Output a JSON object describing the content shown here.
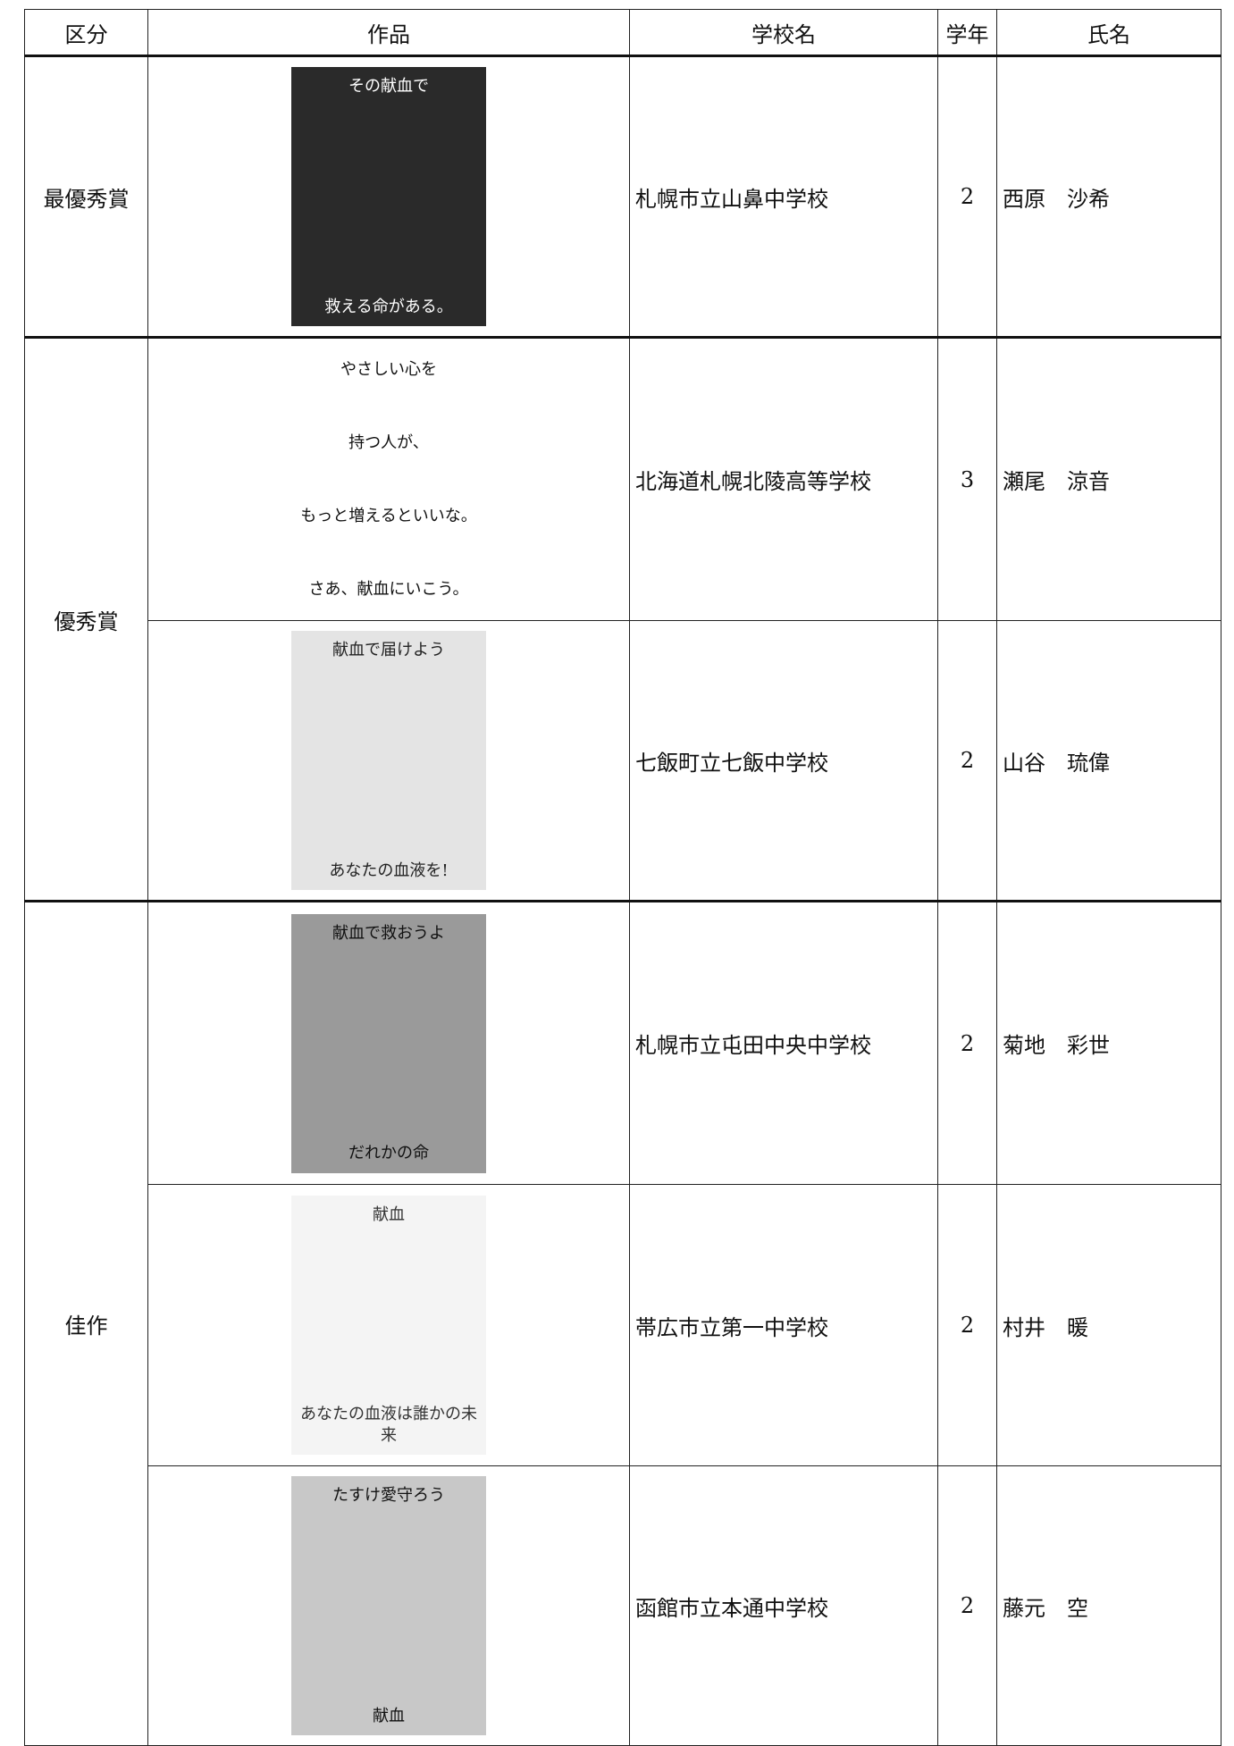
{
  "table": {
    "header": [
      "区分",
      "作品",
      "学校名",
      "学年",
      "氏名"
    ],
    "groups": [
      {
        "category": "最優秀賞",
        "entries": [
          {
            "artwork": [
              "その献血で",
              "救える命がある。"
            ],
            "school": "札幌市立山鼻中学校",
            "grade": 2,
            "name": "西原　沙希"
          }
        ]
      },
      {
        "category": "優秀賞",
        "entries": [
          {
            "artwork": [
              "やさしい心を",
              "持つ人が、",
              "もっと増えるといいな。",
              "さあ、献血にいこう。"
            ],
            "school": "北海道札幌北陵高等学校",
            "grade": 3,
            "name": "瀬尾　涼音"
          },
          {
            "artwork": [
              "献血で届けよう",
              "あなたの血液を!"
            ],
            "school": "七飯町立七飯中学校",
            "grade": 2,
            "name": "山谷　琉偉"
          }
        ]
      },
      {
        "category": "佳作",
        "entries": [
          {
            "artwork": [
              "献血で救おうよ",
              "だれかの命"
            ],
            "school": "札幌市立屯田中央中学校",
            "grade": 2,
            "name": "菊地　彩世"
          },
          {
            "artwork": [
              "献血",
              "あなたの血液は誰かの未来"
            ],
            "school": "帯広市立第一中学校",
            "grade": 2,
            "name": "村井　暖"
          },
          {
            "artwork": [
              "たすけ愛守ろう",
              "献血"
            ],
            "school": "函館市立本通中学校",
            "grade": 2,
            "name": "藤元　空"
          }
        ]
      }
    ]
  }
}
